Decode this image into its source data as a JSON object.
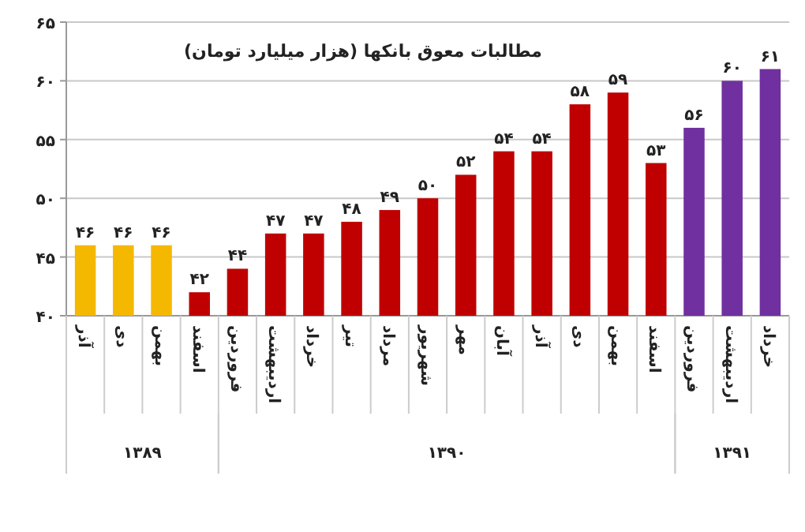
{
  "chart_data": {
    "type": "bar",
    "title": "مطالبات معوق بانکها (هزار میلیارد تومان)",
    "categories": [
      "آذر",
      "دی",
      "بهمن",
      "اسفند",
      "فروردین",
      "اردیبهشت",
      "خرداد",
      "تیر",
      "مرداد",
      "شهریور",
      "مهر",
      "آبان",
      "آذر",
      "دی",
      "بهمن",
      "اسفند",
      "فروردین",
      "اردیبهشت",
      "خرداد"
    ],
    "values": [
      46,
      46,
      46,
      42,
      44,
      47,
      47,
      48,
      49,
      50,
      52,
      54,
      54,
      58,
      59,
      53,
      56,
      60,
      61
    ],
    "value_labels": [
      "۴۶",
      "۴۶",
      "۴۶",
      "۴۲",
      "۴۴",
      "۴۷",
      "۴۷",
      "۴۸",
      "۴۹",
      "۵۰",
      "۵۲",
      "۵۴",
      "۵۴",
      "۵۸",
      "۵۹",
      "۵۳",
      "۵۶",
      "۶۰",
      "۶۱"
    ],
    "colors": [
      "#f5b800",
      "#f5b800",
      "#f5b800",
      "#c00000",
      "#c00000",
      "#c00000",
      "#c00000",
      "#c00000",
      "#c00000",
      "#c00000",
      "#c00000",
      "#c00000",
      "#c00000",
      "#c00000",
      "#c00000",
      "#c00000",
      "#7030a0",
      "#7030a0",
      "#7030a0"
    ],
    "ylim": [
      40,
      65
    ],
    "yticks": [
      {
        "value": 40,
        "label": "۴۰"
      },
      {
        "value": 45,
        "label": "۴۵"
      },
      {
        "value": 50,
        "label": "۵۰"
      },
      {
        "value": 55,
        "label": "۵۵"
      },
      {
        "value": 60,
        "label": "۶۰"
      },
      {
        "value": 65,
        "label": "۶۵"
      }
    ],
    "grid": "y",
    "annotations": [
      "۱۳۸۹",
      "۱۳۹۰",
      "۱۳۹۱"
    ]
  }
}
